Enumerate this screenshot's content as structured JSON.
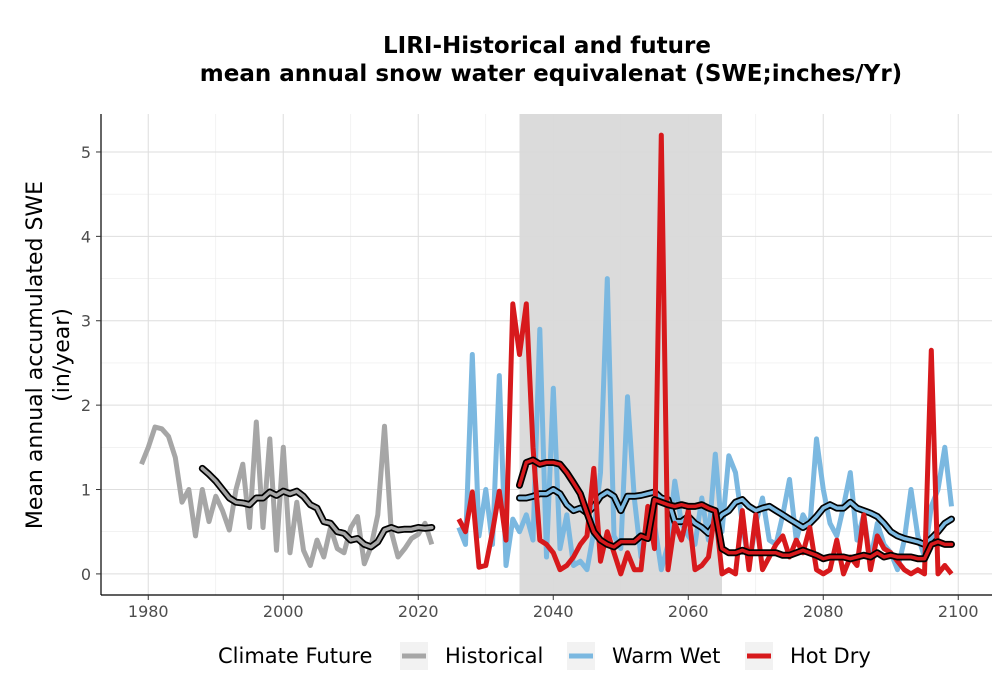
{
  "chart_data": {
    "type": "line",
    "title": "LIRI-Historical and future",
    "subtitle": "mean annual snow water equivalenat (SWE;inches/Yr)",
    "ylabel_line1": "Mean annual accumulated SWE",
    "ylabel_line2": "(in/year)",
    "xlabel": "",
    "xlim": [
      1973,
      2105
    ],
    "ylim": [
      -0.25,
      5.45
    ],
    "xticks": [
      1980,
      2000,
      2020,
      2040,
      2060,
      2080,
      2100
    ],
    "yticks": [
      0,
      1,
      2,
      3,
      4,
      5
    ],
    "grid": true,
    "shaded_period": [
      2035,
      2065
    ],
    "legend": {
      "position": "bottom",
      "title": "Climate Future",
      "items": [
        "Historical",
        "Warm Wet",
        "Hot Dry"
      ]
    },
    "colors": {
      "Historical": "#a6a6a6",
      "Warm Wet": "#7bb8e0",
      "Hot Dry": "#d7191c",
      "smooth_outline": "#000000",
      "shade": "#d9d9d9"
    },
    "series": [
      {
        "name": "Historical",
        "x": [
          1979,
          1980,
          1981,
          1982,
          1983,
          1984,
          1985,
          1986,
          1987,
          1988,
          1989,
          1990,
          1991,
          1992,
          1993,
          1994,
          1995,
          1996,
          1997,
          1998,
          1999,
          2000,
          2001,
          2002,
          2003,
          2004,
          2005,
          2006,
          2007,
          2008,
          2009,
          2010,
          2011,
          2012,
          2013,
          2014,
          2015,
          2016,
          2017,
          2018,
          2019,
          2020,
          2021,
          2022
        ],
        "y": [
          1.3,
          1.5,
          1.74,
          1.72,
          1.63,
          1.38,
          0.85,
          1.0,
          0.45,
          1.0,
          0.62,
          0.92,
          0.75,
          0.52,
          1.0,
          1.3,
          0.55,
          1.8,
          0.55,
          1.6,
          0.28,
          1.5,
          0.25,
          0.85,
          0.28,
          0.1,
          0.4,
          0.2,
          0.55,
          0.3,
          0.25,
          0.55,
          0.68,
          0.12,
          0.32,
          0.7,
          1.75,
          0.5,
          0.2,
          0.3,
          0.42,
          0.47,
          0.6,
          0.35
        ]
      },
      {
        "name": "Historical smoothed",
        "x": [
          1988,
          1989,
          1990,
          1991,
          1992,
          1993,
          1994,
          1995,
          1996,
          1997,
          1998,
          1999,
          2000,
          2001,
          2002,
          2003,
          2004,
          2005,
          2006,
          2007,
          2008,
          2009,
          2010,
          2011,
          2012,
          2013,
          2014,
          2015,
          2016,
          2017,
          2018,
          2019,
          2020,
          2021,
          2022
        ],
        "y": [
          1.25,
          1.18,
          1.1,
          1.0,
          0.9,
          0.85,
          0.84,
          0.82,
          0.9,
          0.9,
          0.97,
          0.93,
          0.98,
          0.95,
          0.98,
          0.92,
          0.82,
          0.78,
          0.62,
          0.6,
          0.5,
          0.48,
          0.4,
          0.42,
          0.35,
          0.32,
          0.38,
          0.52,
          0.55,
          0.52,
          0.53,
          0.53,
          0.55,
          0.54,
          0.55
        ]
      },
      {
        "name": "Warm Wet",
        "x": [
          2026,
          2027,
          2028,
          2029,
          2030,
          2031,
          2032,
          2033,
          2034,
          2035,
          2036,
          2037,
          2038,
          2039,
          2040,
          2041,
          2042,
          2043,
          2044,
          2045,
          2046,
          2047,
          2048,
          2049,
          2050,
          2051,
          2052,
          2053,
          2054,
          2055,
          2056,
          2057,
          2058,
          2059,
          2060,
          2061,
          2062,
          2063,
          2064,
          2065,
          2066,
          2067,
          2068,
          2069,
          2070,
          2071,
          2072,
          2073,
          2074,
          2075,
          2076,
          2077,
          2078,
          2079,
          2080,
          2081,
          2082,
          2083,
          2084,
          2085,
          2086,
          2087,
          2088,
          2089,
          2090,
          2091,
          2092,
          2093,
          2094,
          2095,
          2096,
          2097,
          2098,
          2099
        ],
        "y": [
          0.55,
          0.35,
          2.6,
          0.45,
          1.0,
          0.35,
          2.35,
          0.1,
          0.65,
          0.5,
          0.7,
          0.4,
          2.9,
          0.2,
          2.2,
          0.3,
          0.7,
          0.1,
          0.15,
          0.05,
          0.5,
          1.2,
          3.5,
          0.45,
          0.3,
          2.1,
          0.9,
          0.2,
          0.7,
          0.6,
          0.05,
          0.35,
          1.1,
          0.6,
          0.45,
          0.35,
          0.9,
          0.4,
          1.42,
          0.5,
          1.4,
          1.2,
          0.6,
          0.1,
          0.6,
          0.9,
          0.4,
          0.35,
          0.7,
          1.12,
          0.4,
          0.7,
          0.55,
          1.6,
          1.0,
          0.6,
          0.45,
          0.8,
          1.2,
          0.4,
          0.7,
          0.15,
          0.6,
          0.35,
          0.25,
          0.05,
          0.4,
          1.0,
          0.45,
          0.2,
          0.8,
          1.0,
          1.5,
          0.8
        ]
      },
      {
        "name": "Warm Wet smoothed",
        "x": [
          2035,
          2036,
          2037,
          2038,
          2039,
          2040,
          2041,
          2042,
          2043,
          2044,
          2045,
          2046,
          2047,
          2048,
          2049,
          2050,
          2051,
          2052,
          2053,
          2054,
          2055,
          2056,
          2057,
          2058,
          2059,
          2060,
          2061,
          2062,
          2063,
          2064,
          2065,
          2066,
          2067,
          2068,
          2069,
          2070,
          2071,
          2072,
          2073,
          2074,
          2075,
          2076,
          2077,
          2078,
          2079,
          2080,
          2081,
          2082,
          2083,
          2084,
          2085,
          2086,
          2087,
          2088,
          2089,
          2090,
          2091,
          2092,
          2093,
          2094,
          2095,
          2096,
          2097,
          2098,
          2099
        ],
        "y": [
          0.9,
          0.9,
          0.92,
          0.95,
          0.95,
          1.0,
          0.95,
          0.82,
          0.75,
          0.78,
          0.72,
          0.8,
          0.92,
          0.97,
          0.92,
          0.75,
          0.92,
          0.92,
          0.93,
          0.95,
          0.97,
          0.9,
          0.88,
          0.62,
          0.62,
          0.68,
          0.6,
          0.55,
          0.48,
          0.6,
          0.7,
          0.75,
          0.85,
          0.88,
          0.8,
          0.75,
          0.78,
          0.8,
          0.75,
          0.7,
          0.65,
          0.6,
          0.55,
          0.6,
          0.68,
          0.78,
          0.82,
          0.78,
          0.78,
          0.85,
          0.78,
          0.75,
          0.72,
          0.68,
          0.6,
          0.5,
          0.45,
          0.42,
          0.4,
          0.38,
          0.35,
          0.42,
          0.5,
          0.6,
          0.65
        ]
      },
      {
        "name": "Hot Dry",
        "x": [
          2026,
          2027,
          2028,
          2029,
          2030,
          2031,
          2032,
          2033,
          2034,
          2035,
          2036,
          2037,
          2038,
          2039,
          2040,
          2041,
          2042,
          2043,
          2044,
          2045,
          2046,
          2047,
          2048,
          2049,
          2050,
          2051,
          2052,
          2053,
          2054,
          2055,
          2056,
          2057,
          2058,
          2059,
          2060,
          2061,
          2062,
          2063,
          2064,
          2065,
          2066,
          2067,
          2068,
          2069,
          2070,
          2071,
          2072,
          2073,
          2074,
          2075,
          2076,
          2077,
          2078,
          2079,
          2080,
          2081,
          2082,
          2083,
          2084,
          2085,
          2086,
          2087,
          2088,
          2089,
          2090,
          2091,
          2092,
          2093,
          2094,
          2095,
          2096,
          2097,
          2098,
          2099
        ],
        "y": [
          0.65,
          0.5,
          0.97,
          0.08,
          0.1,
          0.5,
          0.98,
          0.4,
          3.2,
          2.6,
          3.2,
          1.5,
          0.4,
          0.35,
          0.25,
          0.05,
          0.1,
          0.2,
          0.35,
          0.45,
          1.25,
          0.15,
          0.5,
          0.25,
          0.0,
          0.25,
          0.05,
          0.05,
          0.8,
          0.3,
          5.2,
          0.05,
          0.6,
          0.4,
          0.75,
          0.05,
          0.1,
          0.2,
          0.75,
          0.0,
          0.05,
          0.0,
          0.75,
          0.05,
          0.7,
          0.05,
          0.2,
          0.35,
          0.45,
          0.2,
          0.4,
          0.25,
          0.55,
          0.05,
          0.0,
          0.05,
          0.4,
          0.0,
          0.2,
          0.1,
          0.7,
          0.05,
          0.45,
          0.3,
          0.25,
          0.15,
          0.05,
          0.0,
          0.05,
          0.0,
          2.65,
          0.0,
          0.1,
          0.0
        ]
      },
      {
        "name": "Hot Dry smoothed",
        "x": [
          2035,
          2036,
          2037,
          2038,
          2039,
          2040,
          2041,
          2042,
          2043,
          2044,
          2045,
          2046,
          2047,
          2048,
          2049,
          2050,
          2051,
          2052,
          2053,
          2054,
          2055,
          2056,
          2057,
          2058,
          2059,
          2060,
          2061,
          2062,
          2063,
          2064,
          2065,
          2066,
          2067,
          2068,
          2069,
          2070,
          2071,
          2072,
          2073,
          2074,
          2075,
          2076,
          2077,
          2078,
          2079,
          2080,
          2081,
          2082,
          2083,
          2084,
          2085,
          2086,
          2087,
          2088,
          2089,
          2090,
          2091,
          2092,
          2093,
          2094,
          2095,
          2096,
          2097,
          2098,
          2099
        ],
        "y": [
          1.05,
          1.32,
          1.35,
          1.3,
          1.32,
          1.32,
          1.3,
          1.2,
          1.08,
          0.95,
          0.72,
          0.5,
          0.4,
          0.35,
          0.32,
          0.38,
          0.38,
          0.38,
          0.45,
          0.42,
          0.88,
          0.85,
          0.82,
          0.8,
          0.82,
          0.8,
          0.8,
          0.82,
          0.78,
          0.75,
          0.3,
          0.25,
          0.25,
          0.28,
          0.25,
          0.25,
          0.25,
          0.25,
          0.25,
          0.22,
          0.22,
          0.25,
          0.28,
          0.25,
          0.22,
          0.18,
          0.2,
          0.2,
          0.2,
          0.18,
          0.2,
          0.22,
          0.2,
          0.25,
          0.2,
          0.22,
          0.2,
          0.2,
          0.2,
          0.18,
          0.18,
          0.35,
          0.38,
          0.35,
          0.35
        ]
      }
    ]
  }
}
